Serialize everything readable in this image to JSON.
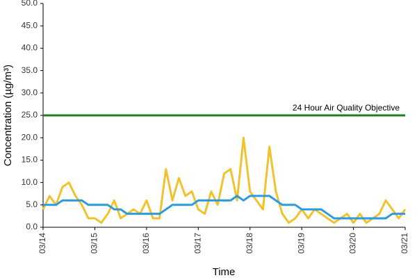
{
  "chart_data": {
    "type": "line",
    "xlabel": "Time",
    "ylabel": "Concentration (µg/m³)",
    "categories": [
      "03/14",
      null,
      null,
      null,
      null,
      null,
      null,
      null,
      "03/15",
      null,
      null,
      null,
      null,
      null,
      null,
      null,
      "03/16",
      null,
      null,
      null,
      null,
      null,
      null,
      null,
      "03/17",
      null,
      null,
      null,
      null,
      null,
      null,
      null,
      "03/18",
      null,
      null,
      null,
      null,
      null,
      null,
      null,
      "03/19",
      null,
      null,
      null,
      null,
      null,
      null,
      null,
      "03/20",
      null,
      null,
      null,
      null,
      null,
      null,
      null,
      "03/21"
    ],
    "series": [
      {
        "color": "#f2c12e",
        "values": [
          4,
          7,
          5,
          9,
          10,
          7,
          5,
          2,
          2,
          1,
          3,
          6,
          2,
          3,
          4,
          3,
          6,
          2,
          2,
          13,
          6,
          11,
          7,
          8,
          4,
          3,
          8,
          5,
          12,
          13,
          6,
          20,
          8,
          6,
          4,
          18,
          8,
          3,
          1,
          2,
          4,
          2,
          4,
          3,
          2,
          1,
          2,
          3,
          1,
          3,
          1,
          2,
          3,
          6,
          4,
          2,
          4
        ]
      },
      {
        "color": "#2b9be0",
        "values": [
          5,
          5,
          5,
          6,
          6,
          6,
          6,
          5,
          5,
          5,
          5,
          4,
          4,
          3,
          3,
          3,
          3,
          3,
          3,
          4,
          5,
          5,
          5,
          5,
          6,
          6,
          6,
          6,
          6,
          6,
          7,
          6,
          7,
          7,
          7,
          7,
          6,
          5,
          5,
          5,
          4,
          4,
          4,
          4,
          3,
          2,
          2,
          2,
          2,
          2,
          2,
          2,
          2,
          2,
          3,
          3,
          3
        ]
      }
    ],
    "hlines": [
      {
        "value": 25,
        "label": "24 Hour Air Quality Objective",
        "color": "#1e7d1e"
      }
    ],
    "ylim": [
      0,
      50
    ],
    "yticks": [
      {
        "value": 0,
        "label": "0.0"
      },
      {
        "value": 5,
        "label": "5.0"
      },
      {
        "value": 10,
        "label": "10.0"
      },
      {
        "value": 15,
        "label": "15.0"
      },
      {
        "value": 20,
        "label": "20.0"
      },
      {
        "value": 25,
        "label": "25.0"
      },
      {
        "value": 30,
        "label": "30.0"
      },
      {
        "value": 35,
        "label": "35.0"
      },
      {
        "value": 40,
        "label": "40.0"
      },
      {
        "value": 45,
        "label": "45.0"
      },
      {
        "value": 50,
        "label": "50.0"
      }
    ],
    "grid": false
  }
}
